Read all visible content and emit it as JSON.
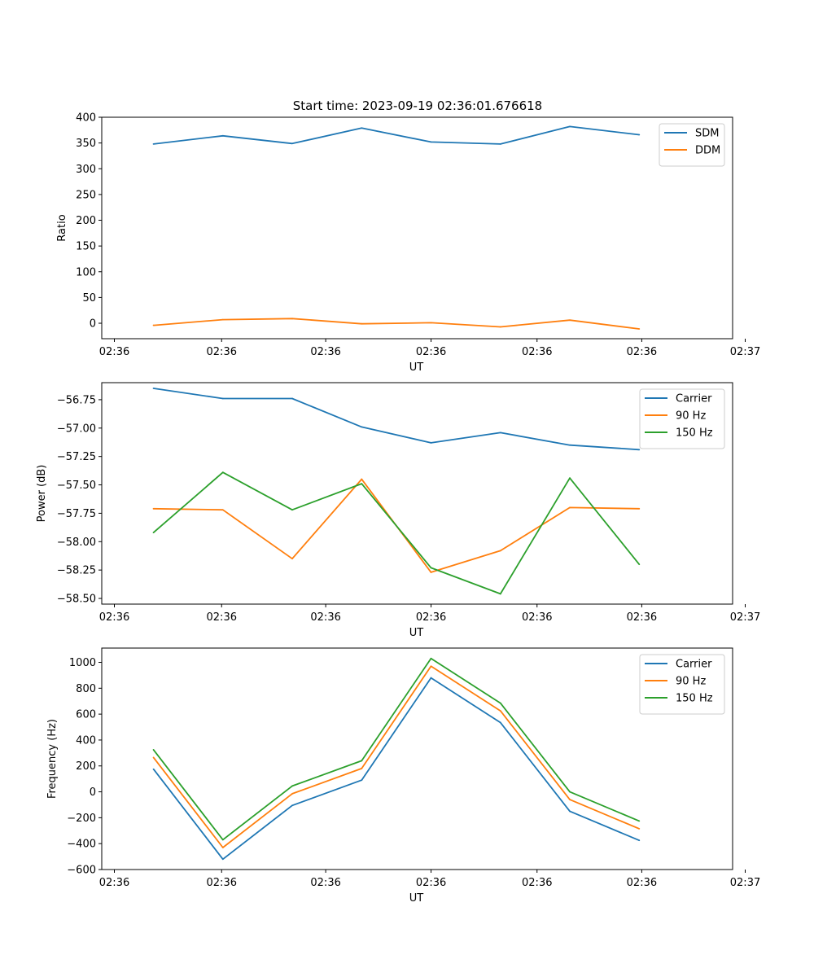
{
  "figure_title": "Start time: 2023-09-19 02:36:01.676618",
  "colors": {
    "blue": "#1f77b4",
    "orange": "#ff7f0e",
    "green": "#2ca02c"
  },
  "chart_data": [
    {
      "type": "line",
      "title": "Start time: 2023-09-19 02:36:01.676618",
      "xlabel": "UT",
      "ylabel": "Ratio",
      "xlim": [
        0,
        1
      ],
      "ylim": [
        -30,
        400
      ],
      "x": [
        0.082,
        0.192,
        0.302,
        0.412,
        0.522,
        0.632,
        0.742,
        0.852
      ],
      "xticks": [
        {
          "at": 0.02,
          "label": "02:36"
        },
        {
          "at": 0.19,
          "label": "02:36"
        },
        {
          "at": 0.355,
          "label": "02:36"
        },
        {
          "at": 0.522,
          "label": "02:36"
        },
        {
          "at": 0.69,
          "label": "02:36"
        },
        {
          "at": 0.856,
          "label": "02:36"
        },
        {
          "at": 1.02,
          "label": "02:37"
        }
      ],
      "yticks": [
        0,
        50,
        100,
        150,
        200,
        250,
        300,
        350,
        400
      ],
      "ytick_labels": [
        "0",
        "50",
        "100",
        "150",
        "200",
        "250",
        "300",
        "350",
        "400"
      ],
      "legend_position": "top-right",
      "series": [
        {
          "name": "SDM",
          "color": "#1f77b4",
          "values": [
            348,
            364,
            349,
            379,
            352,
            348,
            382,
            366
          ]
        },
        {
          "name": "DDM",
          "color": "#ff7f0e",
          "values": [
            -4,
            7,
            9,
            -1,
            1,
            -7,
            6,
            -11
          ]
        }
      ]
    },
    {
      "type": "line",
      "xlabel": "UT",
      "ylabel": "Power (dB)",
      "xlim": [
        0,
        1
      ],
      "ylim": [
        -58.55,
        -56.6
      ],
      "x": [
        0.082,
        0.192,
        0.302,
        0.412,
        0.522,
        0.632,
        0.742,
        0.852
      ],
      "xticks": [
        {
          "at": 0.02,
          "label": "02:36"
        },
        {
          "at": 0.19,
          "label": "02:36"
        },
        {
          "at": 0.355,
          "label": "02:36"
        },
        {
          "at": 0.522,
          "label": "02:36"
        },
        {
          "at": 0.69,
          "label": "02:36"
        },
        {
          "at": 0.856,
          "label": "02:36"
        },
        {
          "at": 1.02,
          "label": "02:37"
        }
      ],
      "yticks": [
        -56.75,
        -57.0,
        -57.25,
        -57.5,
        -57.75,
        -58.0,
        -58.25,
        -58.5
      ],
      "ytick_labels": [
        "−56.75",
        "−57.00",
        "−57.25",
        "−57.50",
        "−57.75",
        "−58.00",
        "−58.25",
        "−58.50"
      ],
      "legend_position": "top-right",
      "series": [
        {
          "name": "Carrier",
          "color": "#1f77b4",
          "values": [
            -56.65,
            -56.74,
            -56.74,
            -56.99,
            -57.13,
            -57.04,
            -57.15,
            -57.19
          ]
        },
        {
          "name": "90 Hz",
          "color": "#ff7f0e",
          "values": [
            -57.71,
            -57.72,
            -58.15,
            -57.45,
            -58.27,
            -58.08,
            -57.7,
            -57.71
          ]
        },
        {
          "name": "150 Hz",
          "color": "#2ca02c",
          "values": [
            -57.92,
            -57.39,
            -57.72,
            -57.49,
            -58.23,
            -58.46,
            -57.44,
            -58.2
          ]
        }
      ]
    },
    {
      "type": "line",
      "xlabel": "UT",
      "ylabel": "Frequency (Hz)",
      "xlim": [
        0,
        1
      ],
      "ylim": [
        -600,
        1110
      ],
      "x": [
        0.082,
        0.192,
        0.302,
        0.412,
        0.522,
        0.632,
        0.742,
        0.852
      ],
      "xticks": [
        {
          "at": 0.02,
          "label": "02:36"
        },
        {
          "at": 0.19,
          "label": "02:36"
        },
        {
          "at": 0.355,
          "label": "02:36"
        },
        {
          "at": 0.522,
          "label": "02:36"
        },
        {
          "at": 0.69,
          "label": "02:36"
        },
        {
          "at": 0.856,
          "label": "02:36"
        },
        {
          "at": 1.02,
          "label": "02:37"
        }
      ],
      "yticks": [
        -600,
        -400,
        -200,
        0,
        200,
        400,
        600,
        800,
        1000
      ],
      "ytick_labels": [
        "−600",
        "−400",
        "−200",
        "0",
        "200",
        "400",
        "600",
        "800",
        "1000"
      ],
      "legend_position": "top-right",
      "series": [
        {
          "name": "Carrier",
          "color": "#1f77b4",
          "values": [
            175,
            -520,
            -105,
            90,
            880,
            535,
            -150,
            -375
          ]
        },
        {
          "name": "90 Hz",
          "color": "#ff7f0e",
          "values": [
            265,
            -430,
            -15,
            180,
            970,
            625,
            -60,
            -285
          ]
        },
        {
          "name": "150 Hz",
          "color": "#2ca02c",
          "values": [
            325,
            -370,
            45,
            240,
            1030,
            685,
            0,
            -225
          ]
        }
      ]
    }
  ]
}
